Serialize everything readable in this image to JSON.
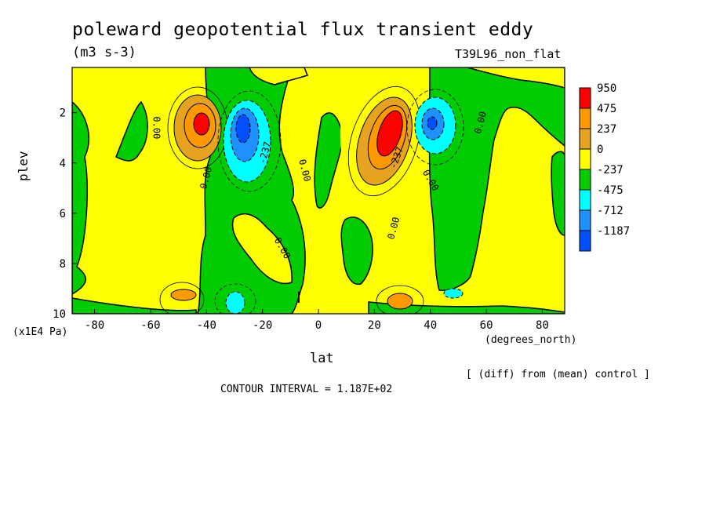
{
  "chart_data": {
    "type": "contour",
    "title": "poleward geopotential flux transient eddy",
    "units": "(m3 s-3)",
    "run_name": "T39L96_non_flat",
    "xlabel": "lat",
    "x_unit": "(degrees_north)",
    "ylabel": "plev",
    "y_unit": "(x1E4 Pa)",
    "note": "[ (diff) from (mean) control ]",
    "contour_interval": "CONTOUR INTERVAL = 1.187E+02",
    "xlim": [
      -88,
      88
    ],
    "ylim": [
      10,
      0.2
    ],
    "x_ticks": [
      -80,
      -60,
      -40,
      -20,
      0,
      20,
      40,
      60,
      80
    ],
    "x_tick_labels": [
      "-80",
      "-60",
      "-40",
      "-20",
      "0",
      "20",
      "40",
      "60",
      "80"
    ],
    "y_ticks": [
      2,
      4,
      6,
      8,
      10
    ],
    "y_tick_labels": [
      "2",
      "4",
      "6",
      "8",
      "10"
    ],
    "legend": [
      {
        "label": "950",
        "color": "#ff0000"
      },
      {
        "label": "475",
        "color": "#ff9900"
      },
      {
        "label": "237",
        "color": "#e6a320"
      },
      {
        "label": "0",
        "color": "#ffff00"
      },
      {
        "label": "-237",
        "color": "#00cc00"
      },
      {
        "label": "-475",
        "color": "#00ffff"
      },
      {
        "label": "-712",
        "color": "#1e90ff"
      },
      {
        "label": "-1187",
        "color": "#0050ff"
      }
    ],
    "contour_labels": [
      {
        "text": "0.00",
        "x": -58,
        "y": 2.6,
        "rotate": 90
      },
      {
        "text": "0.00",
        "x": -40,
        "y": 4.6,
        "rotate": -75
      },
      {
        "text": "-237",
        "x": -19,
        "y": 3.6,
        "rotate": -75
      },
      {
        "text": "0.00",
        "x": -5,
        "y": 4.3,
        "rotate": 75
      },
      {
        "text": "0.00",
        "x": -13,
        "y": 7.4,
        "rotate": 60
      },
      {
        "text": "-237",
        "x": 28,
        "y": 3.8,
        "rotate": -70
      },
      {
        "text": "0.00",
        "x": 40,
        "y": 4.7,
        "rotate": 60
      },
      {
        "text": "0.00",
        "x": 27,
        "y": 6.6,
        "rotate": -75
      },
      {
        "text": "0.00",
        "x": 58,
        "y": 2.4,
        "rotate": -75
      }
    ]
  }
}
